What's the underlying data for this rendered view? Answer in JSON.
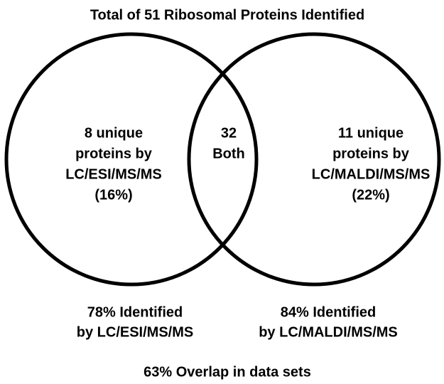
{
  "title": "Total of 51 Ribosomal Proteins Identified",
  "regions": {
    "left": [
      "8 unique",
      "proteins by",
      "LC/ESI/MS/MS",
      "(16%)"
    ],
    "both": [
      "32",
      "Both"
    ],
    "right": [
      "11 unique",
      "proteins by",
      "LC/MALDI/MS/MS",
      "(22%)"
    ]
  },
  "captions": {
    "left": [
      "78% Identified",
      "by LC/ESI/MS/MS"
    ],
    "right": [
      "84% Identified",
      "by LC/MALDI/MS/MS"
    ]
  },
  "footer": "63% Overlap in data sets"
}
